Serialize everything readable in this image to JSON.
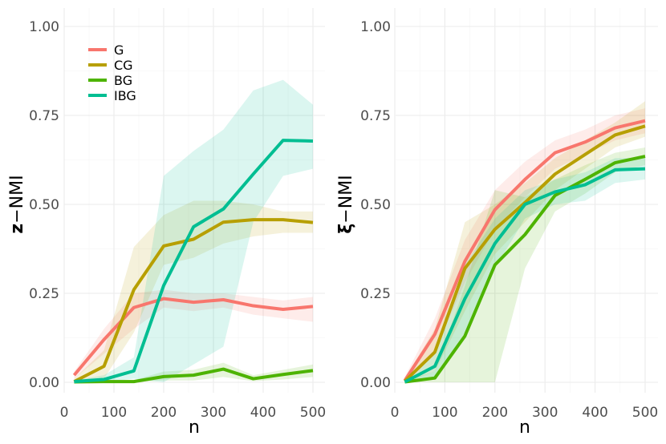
{
  "chart_data": [
    {
      "type": "line",
      "ylabel_bold": "z",
      "ylabel_rest": "−NMI",
      "xlabel": "n",
      "xlim": [
        0,
        500
      ],
      "ylim": [
        0,
        1
      ],
      "xticks": [
        "0",
        "100",
        "200",
        "300",
        "400",
        "500"
      ],
      "yticks": [
        "0.00",
        "0.25",
        "0.50",
        "0.75",
        "1.00"
      ],
      "x": [
        20,
        80,
        140,
        200,
        260,
        320,
        380,
        440,
        500
      ],
      "series": [
        {
          "name": "G",
          "color": "#F8766D",
          "values": [
            0.02,
            0.12,
            0.21,
            0.235,
            0.225,
            0.232,
            0.215,
            0.205,
            0.213
          ],
          "lower": [
            0.01,
            0.08,
            0.15,
            0.21,
            0.2,
            0.21,
            0.19,
            0.18,
            0.17
          ],
          "upper": [
            0.03,
            0.15,
            0.25,
            0.26,
            0.25,
            0.25,
            0.24,
            0.23,
            0.24
          ]
        },
        {
          "name": "CG",
          "color": "#B79F00",
          "values": [
            0.002,
            0.045,
            0.26,
            0.383,
            0.402,
            0.45,
            0.457,
            0.457,
            0.449
          ],
          "lower": [
            0.0,
            0.01,
            0.14,
            0.33,
            0.35,
            0.39,
            0.41,
            0.42,
            0.42
          ],
          "upper": [
            0.01,
            0.09,
            0.38,
            0.47,
            0.51,
            0.51,
            0.5,
            0.48,
            0.48
          ]
        },
        {
          "name": "BG",
          "color": "#4DB300",
          "values": [
            0.001,
            0.002,
            0.002,
            0.016,
            0.02,
            0.037,
            0.01,
            0.022,
            0.033
          ],
          "lower": [
            0.0,
            0.0,
            0.0,
            0.005,
            0.005,
            0.015,
            0.003,
            0.008,
            0.015
          ],
          "upper": [
            0.003,
            0.006,
            0.006,
            0.03,
            0.035,
            0.055,
            0.02,
            0.035,
            0.05
          ]
        },
        {
          "name": "IBG",
          "color": "#00BE92",
          "values": [
            0.002,
            0.008,
            0.032,
            0.272,
            0.437,
            0.487,
            0.585,
            0.68,
            0.678
          ],
          "lower": [
            0.0,
            0.0,
            0.01,
            0.0,
            0.05,
            0.1,
            0.45,
            0.58,
            0.6
          ],
          "upper": [
            0.005,
            0.02,
            0.07,
            0.58,
            0.65,
            0.71,
            0.82,
            0.85,
            0.78
          ]
        }
      ]
    },
    {
      "type": "line",
      "ylabel_bold": "ξ",
      "ylabel_rest": "−NMI",
      "xlabel": "n",
      "xlim": [
        0,
        500
      ],
      "ylim": [
        0,
        1
      ],
      "xticks": [
        "0",
        "100",
        "200",
        "300",
        "400",
        "500"
      ],
      "yticks": [
        "0.00",
        "0.25",
        "0.50",
        "0.75",
        "1.00"
      ],
      "x": [
        20,
        80,
        140,
        200,
        260,
        320,
        380,
        440,
        500
      ],
      "series": [
        {
          "name": "G",
          "color": "#F8766D",
          "values": [
            0.005,
            0.135,
            0.34,
            0.485,
            0.57,
            0.645,
            0.675,
            0.715,
            0.735
          ],
          "lower": [
            0.0,
            0.09,
            0.28,
            0.43,
            0.52,
            0.6,
            0.64,
            0.68,
            0.7
          ],
          "upper": [
            0.015,
            0.18,
            0.4,
            0.54,
            0.62,
            0.68,
            0.71,
            0.75,
            0.77
          ]
        },
        {
          "name": "CG",
          "color": "#B79F00",
          "values": [
            0.003,
            0.085,
            0.32,
            0.43,
            0.505,
            0.585,
            0.64,
            0.695,
            0.72
          ],
          "lower": [
            0.0,
            0.03,
            0.2,
            0.36,
            0.45,
            0.54,
            0.6,
            0.66,
            0.69
          ],
          "upper": [
            0.01,
            0.15,
            0.45,
            0.5,
            0.56,
            0.63,
            0.68,
            0.73,
            0.79
          ]
        },
        {
          "name": "BG",
          "color": "#4DB300",
          "values": [
            0.001,
            0.012,
            0.13,
            0.33,
            0.415,
            0.525,
            0.57,
            0.617,
            0.635
          ],
          "lower": [
            0.0,
            0.0,
            0.0,
            0.0,
            0.32,
            0.48,
            0.53,
            0.59,
            0.61
          ],
          "upper": [
            0.005,
            0.03,
            0.27,
            0.54,
            0.52,
            0.57,
            0.61,
            0.645,
            0.66
          ]
        },
        {
          "name": "IBG",
          "color": "#00BE92",
          "values": [
            0.001,
            0.045,
            0.235,
            0.39,
            0.5,
            0.535,
            0.555,
            0.597,
            0.6
          ],
          "lower": [
            0.0,
            0.01,
            0.14,
            0.32,
            0.46,
            0.5,
            0.51,
            0.56,
            0.57
          ],
          "upper": [
            0.005,
            0.08,
            0.33,
            0.46,
            0.54,
            0.57,
            0.59,
            0.63,
            0.63
          ]
        }
      ]
    }
  ]
}
